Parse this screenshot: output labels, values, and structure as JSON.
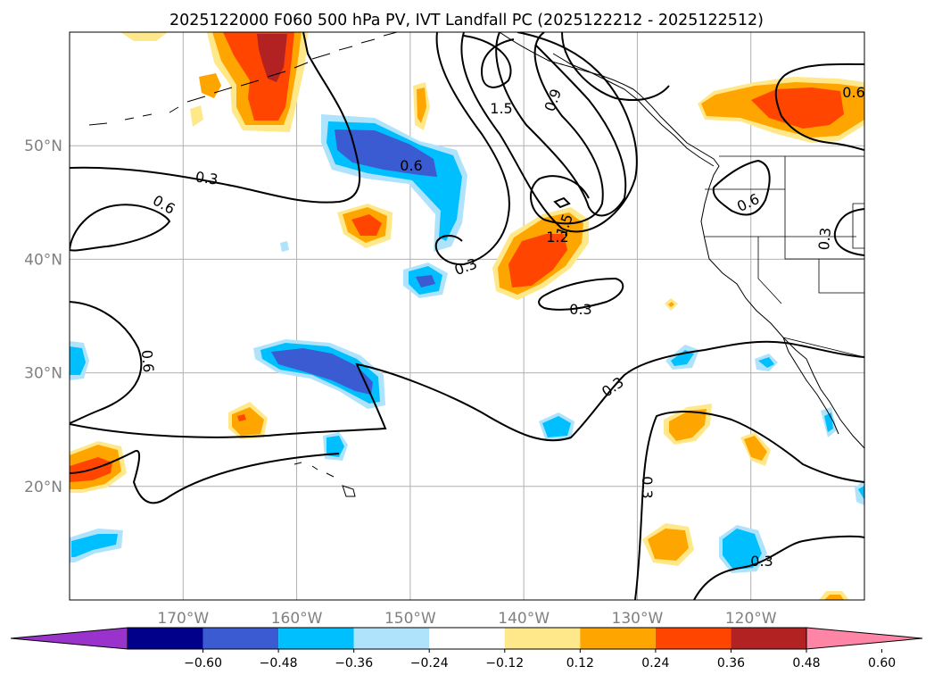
{
  "title": "2025122000 F060 500 hPa PV, IVT Landfall PC (2025122212 - 2025122512)",
  "map": {
    "lon_range": [
      -180,
      -110
    ],
    "lat_range": [
      10,
      60
    ],
    "lat_ticks": [
      20,
      30,
      40,
      50
    ],
    "lat_labels": [
      "20°N",
      "30°N",
      "40°N",
      "50°N"
    ],
    "lon_ticks": [
      -170,
      -160,
      -150,
      -140,
      -130,
      -120
    ],
    "lon_labels": [
      "170°W",
      "160°W",
      "150°W",
      "140°W",
      "130°W",
      "120°W"
    ]
  },
  "contour_labels": [
    "1.5",
    "0.9",
    "0.3",
    "0.6",
    "0.6",
    "0.6",
    "1.5",
    "1.2",
    "0.3",
    "0.3",
    "0.6",
    "0.3",
    "0.3",
    "0.6",
    "0.3",
    "0.3"
  ],
  "colorbar": {
    "tick_labels": [
      "−0.60",
      "−0.48",
      "−0.36",
      "−0.24",
      "−0.12",
      "0.12",
      "0.24",
      "0.36",
      "0.48",
      "0.60"
    ],
    "colors": [
      "#9933cc",
      "#00008b",
      "#3a5bd1",
      "#00bfff",
      "#aee3fb",
      "#ffffff",
      "#ffe88a",
      "#ffa500",
      "#ff4500",
      "#b22222",
      "#ff85a6"
    ]
  }
}
